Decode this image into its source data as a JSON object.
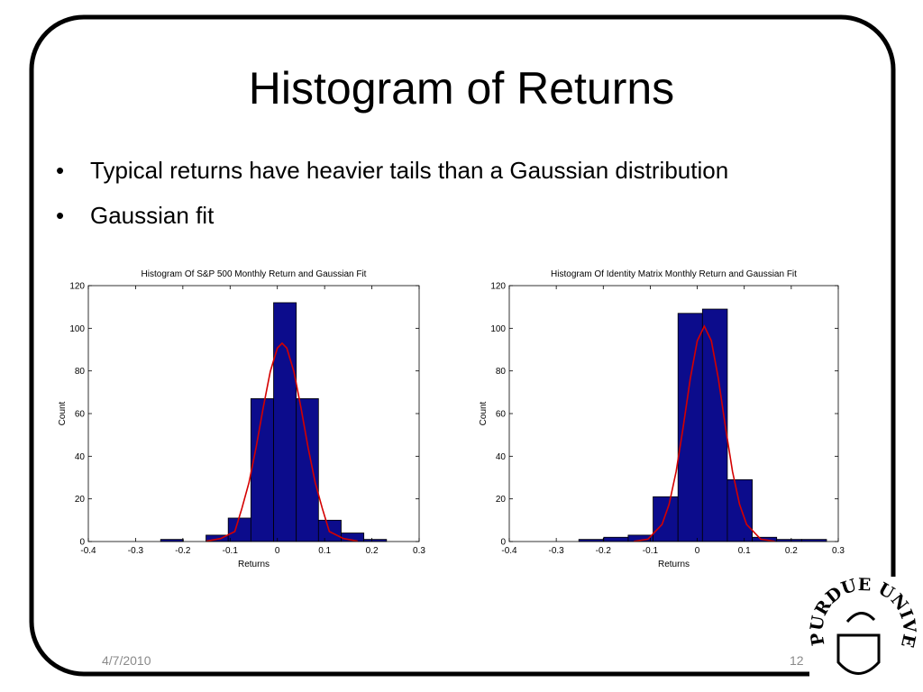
{
  "slide": {
    "title": "Histogram of Returns",
    "bullets": [
      "Typical returns have heavier tails than a Gaussian distribution",
      "Gaussian fit"
    ],
    "date": "4/7/2010",
    "page": "12",
    "logo_text": "PURDUE UNIVERSITY"
  },
  "chart_data": [
    {
      "type": "histogram",
      "title": "Histogram Of S&P 500 Monthly Return and Gaussian Fit",
      "xlabel": "Returns",
      "ylabel": "Count",
      "bins": [
        -0.247,
        -0.199,
        -0.151,
        -0.104,
        -0.056,
        -0.008,
        0.04,
        0.087,
        0.135,
        0.183,
        0.231
      ],
      "counts": [
        1,
        0,
        3,
        11,
        67,
        112,
        67,
        10,
        4,
        1
      ],
      "color": "#0c0c8c",
      "edgecolor": "#000000",
      "fit": {
        "color": "#d40000",
        "x": [
          -0.15,
          -0.12,
          -0.09,
          -0.075,
          -0.06,
          -0.045,
          -0.03,
          -0.015,
          0,
          0.01,
          0.02,
          0.035,
          0.05,
          0.065,
          0.08,
          0.095,
          0.11,
          0.14,
          0.17
        ],
        "values": [
          0.2,
          1.4,
          4.7,
          15.6,
          27.7,
          44.1,
          62.7,
          79.7,
          90.7,
          93,
          90.7,
          79.7,
          62.7,
          44.1,
          27.7,
          15.6,
          4.7,
          1.4,
          0.2
        ]
      },
      "xlim": [
        -0.4,
        0.3
      ],
      "ylim": [
        0,
        120
      ],
      "xticks": [
        -0.4,
        -0.3,
        -0.2,
        -0.1,
        0,
        0.1,
        0.2,
        0.3
      ],
      "yticks": [
        0,
        20,
        40,
        60,
        80,
        100,
        120
      ]
    },
    {
      "type": "histogram",
      "title": "Histogram Of Identity Matrix Monthly Return and Gaussian Fit",
      "xlabel": "Returns",
      "ylabel": "Count",
      "bins": [
        -0.252,
        -0.199,
        -0.147,
        -0.094,
        -0.041,
        0.011,
        0.064,
        0.117,
        0.169,
        0.222,
        0.275
      ],
      "counts": [
        1,
        2,
        3,
        21,
        107,
        109,
        29,
        2,
        1,
        1
      ],
      "color": "#0c0c8c",
      "edgecolor": "#000000",
      "fit": {
        "color": "#d40000",
        "x": [
          -0.135,
          -0.105,
          -0.075,
          -0.06,
          -0.045,
          -0.03,
          -0.015,
          0,
          0.015,
          0.03,
          0.045,
          0.06,
          0.075,
          0.09,
          0.105,
          0.135,
          0.165
        ],
        "values": [
          0.1,
          1.1,
          8.0,
          17.4,
          32.8,
          53.6,
          76.2,
          94.1,
          101,
          94.1,
          76.2,
          53.6,
          32.8,
          17.4,
          8.0,
          1.1,
          0.1
        ]
      },
      "xlim": [
        -0.4,
        0.3
      ],
      "ylim": [
        0,
        120
      ],
      "xticks": [
        -0.4,
        -0.3,
        -0.2,
        -0.1,
        0,
        0.1,
        0.2,
        0.3
      ],
      "yticks": [
        0,
        20,
        40,
        60,
        80,
        100,
        120
      ]
    }
  ]
}
